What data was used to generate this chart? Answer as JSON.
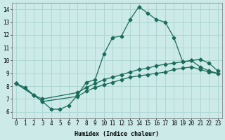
{
  "xlabel": "Humidex (Indice chaleur)",
  "bg_color": "#cceae8",
  "grid_color": "#aad4d0",
  "line_color": "#1a6b5a",
  "xlim": [
    -0.5,
    23.5
  ],
  "ylim": [
    5.5,
    14.5
  ],
  "xticks": [
    0,
    1,
    2,
    3,
    4,
    5,
    6,
    7,
    8,
    9,
    10,
    11,
    12,
    13,
    14,
    15,
    16,
    17,
    18,
    19,
    20,
    21,
    22,
    23
  ],
  "yticks": [
    6,
    7,
    8,
    9,
    10,
    11,
    12,
    13,
    14
  ],
  "line1_x": [
    0,
    1,
    2,
    3,
    4,
    5,
    6,
    7,
    8,
    9,
    10,
    11,
    12,
    13,
    14,
    15,
    16,
    17,
    18,
    19,
    20,
    21,
    22,
    23
  ],
  "line1_y": [
    8.2,
    7.9,
    7.3,
    6.8,
    6.2,
    6.2,
    6.5,
    7.3,
    8.3,
    8.5,
    10.5,
    11.8,
    11.9,
    13.2,
    14.2,
    13.7,
    13.2,
    13.0,
    11.8,
    9.9,
    10.0,
    9.5,
    9.2,
    9.0
  ],
  "line2_x": [
    0,
    2,
    3,
    7,
    8,
    9,
    10,
    11,
    12,
    13,
    14,
    15,
    16,
    17,
    18,
    19,
    20,
    21,
    22,
    23
  ],
  "line2_y": [
    8.2,
    7.3,
    7.0,
    7.5,
    7.9,
    8.2,
    8.5,
    8.7,
    8.9,
    9.1,
    9.3,
    9.4,
    9.6,
    9.7,
    9.8,
    9.9,
    10.0,
    10.1,
    9.8,
    9.2
  ],
  "line3_x": [
    0,
    2,
    3,
    7,
    8,
    9,
    10,
    11,
    12,
    13,
    14,
    15,
    16,
    17,
    18,
    19,
    20,
    21,
    22,
    23
  ],
  "line3_y": [
    8.2,
    7.3,
    6.8,
    7.2,
    7.6,
    7.9,
    8.1,
    8.3,
    8.5,
    8.7,
    8.8,
    8.9,
    9.0,
    9.1,
    9.3,
    9.4,
    9.5,
    9.3,
    9.1,
    9.0
  ],
  "marker": "D",
  "markersize": 2.5,
  "linewidth": 0.9,
  "tick_fontsize": 5.5,
  "xlabel_fontsize": 6.0
}
